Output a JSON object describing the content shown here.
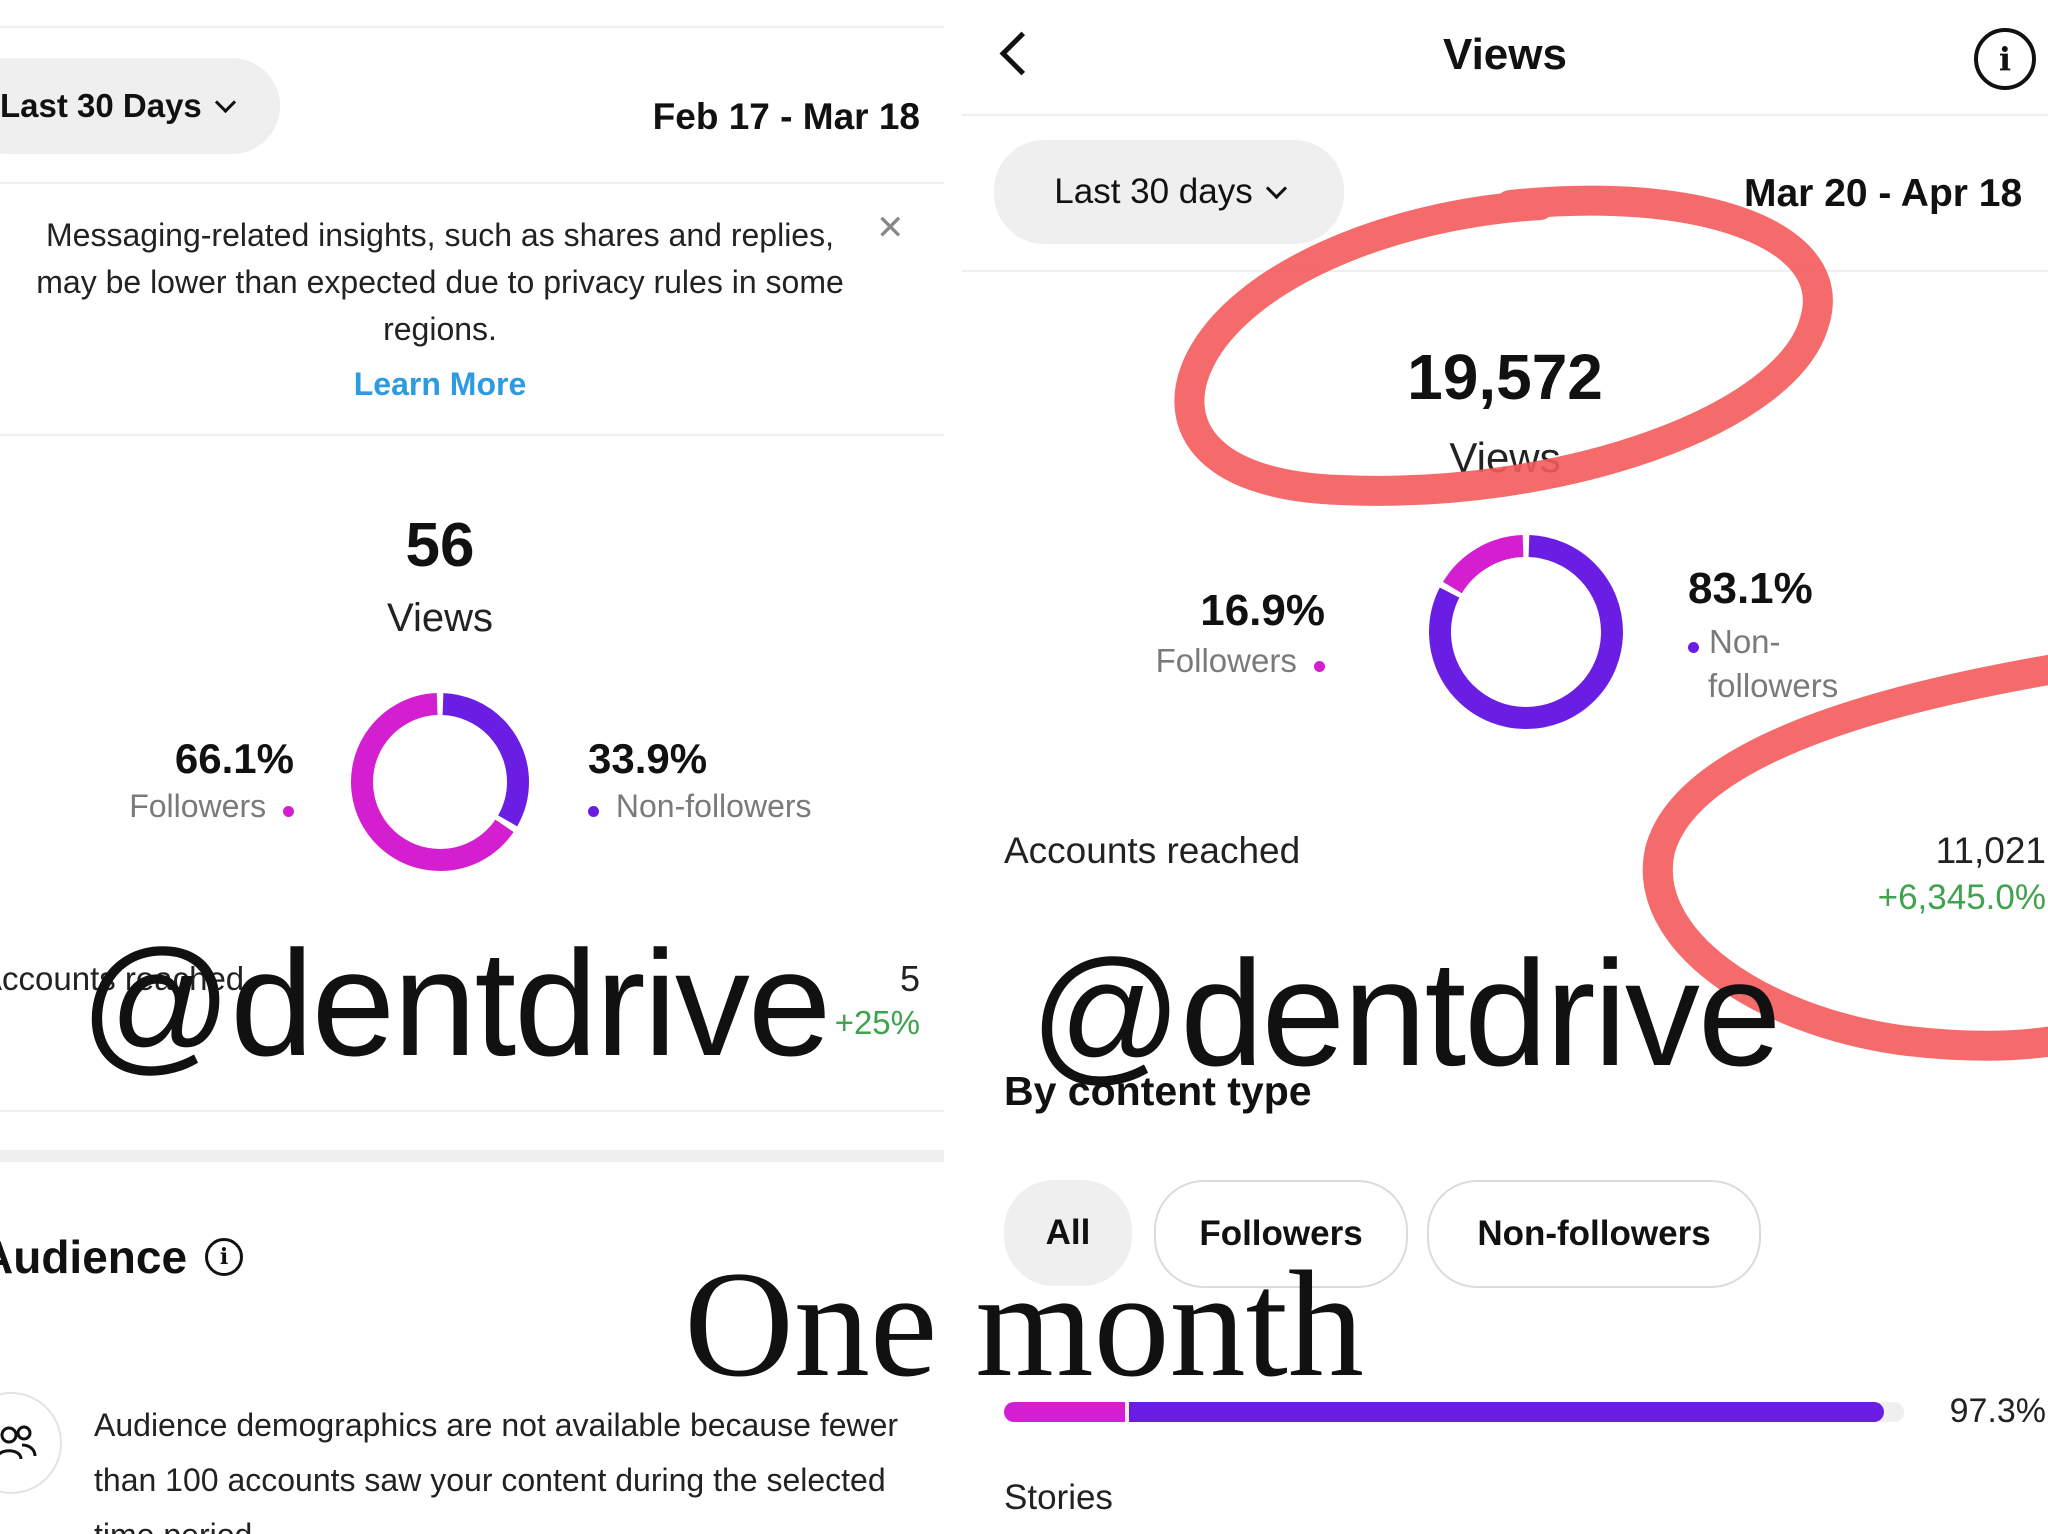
{
  "left": {
    "range_selector": "Last 30 Days",
    "date_range": "Feb 17 - Mar 18",
    "notice": {
      "text": "Messaging-related insights, such as shares and replies, may be lower than expected due to privacy rules in some regions.",
      "link": "Learn More",
      "close_icon": "close-icon"
    },
    "views": {
      "value": "56",
      "label": "Views"
    },
    "followers": {
      "percent": "66.1%",
      "label": "Followers",
      "fraction": 0.661
    },
    "non_followers": {
      "percent": "33.9%",
      "label": "Non-followers",
      "fraction": 0.339
    },
    "accounts_reached": {
      "label": "Accounts reached",
      "value": "5",
      "change": "+25%"
    },
    "audience": {
      "title": "Audience",
      "info_icon": "info-icon",
      "icon": "people-icon",
      "text": "Audience demographics are not available because fewer than 100 accounts saw your content during the selected time period."
    }
  },
  "right": {
    "header": {
      "title": "Views",
      "back_icon": "back-arrow-icon",
      "info_icon": "info-icon"
    },
    "range_selector": "Last 30 days",
    "date_range": "Mar 20 - Apr 18",
    "views": {
      "value": "19,572",
      "label": "Views"
    },
    "followers": {
      "percent": "16.9%",
      "label": "Followers",
      "fraction": 0.169
    },
    "non_followers": {
      "percent": "83.1%",
      "label_line1": "Non-",
      "label_line2": "followers",
      "fraction": 0.831
    },
    "accounts_reached": {
      "label": "Accounts reached",
      "value": "11,021",
      "change": "+6,345.0%"
    },
    "content_type": {
      "title": "By content type",
      "filters": [
        "All",
        "Followers",
        "Non-followers"
      ],
      "selected": "All",
      "bar": {
        "followers_fraction": 0.134,
        "non_followers_fraction": 0.839,
        "percent": "97.3%"
      },
      "next_label": "Stories"
    }
  },
  "colors": {
    "followers": "#d41fd0",
    "non_followers": "#6a1ee3",
    "positive": "#3fa34d",
    "link": "#2d9be0",
    "annotation_red": "#f45a5a"
  },
  "overlay": {
    "watermark": "@dentdrive",
    "caption": "One month"
  }
}
